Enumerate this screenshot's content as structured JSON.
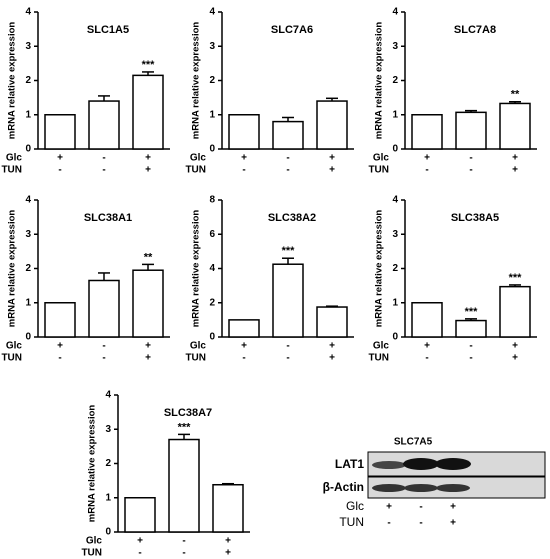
{
  "chart_data": [
    {
      "type": "bar",
      "title": "SLC1A5",
      "ylabel": "mRNA relative expression",
      "values": [
        1,
        1.4,
        2.15
      ],
      "errors": [
        0,
        0.15,
        0.1
      ],
      "annotations": [
        null,
        null,
        "***"
      ],
      "ylim": [
        0,
        4
      ],
      "yticks": [
        0,
        1,
        2,
        3,
        4
      ],
      "color": "#ffffff",
      "conditions": [
        {
          "name": "Glc",
          "marks": [
            "+",
            "-",
            "+"
          ]
        },
        {
          "name": "TUN",
          "marks": [
            "-",
            "-",
            "+"
          ]
        }
      ]
    },
    {
      "type": "bar",
      "title": "SLC7A6",
      "ylabel": "mRNA relative expression",
      "values": [
        1,
        0.8,
        1.4
      ],
      "errors": [
        0,
        0.12,
        0.08
      ],
      "annotations": [
        null,
        null,
        null
      ],
      "ylim": [
        0,
        4
      ],
      "yticks": [
        0,
        1,
        2,
        3,
        4
      ],
      "color": "#ffffff",
      "conditions": [
        {
          "name": "Glc",
          "marks": [
            "+",
            "-",
            "+"
          ]
        },
        {
          "name": "TUN",
          "marks": [
            "-",
            "-",
            "+"
          ]
        }
      ]
    },
    {
      "type": "bar",
      "title": "SLC7A8",
      "ylabel": "mRNA relative expression",
      "values": [
        1,
        1.07,
        1.33
      ],
      "errors": [
        0,
        0.05,
        0.05
      ],
      "annotations": [
        null,
        null,
        "**"
      ],
      "ylim": [
        0,
        4
      ],
      "yticks": [
        0,
        1,
        2,
        3,
        4
      ],
      "color": "#ffffff",
      "conditions": [
        {
          "name": "Glc",
          "marks": [
            "+",
            "-",
            "+"
          ]
        },
        {
          "name": "TUN",
          "marks": [
            "-",
            "-",
            "+"
          ]
        }
      ]
    },
    {
      "type": "bar",
      "title": "SLC38A1",
      "ylabel": "mRNA relative expression",
      "values": [
        1,
        1.65,
        1.95
      ],
      "errors": [
        0,
        0.22,
        0.17
      ],
      "annotations": [
        null,
        null,
        "**"
      ],
      "ylim": [
        0,
        4
      ],
      "yticks": [
        0,
        1,
        2,
        3,
        4
      ],
      "color": "#ffffff",
      "conditions": [
        {
          "name": "Glc",
          "marks": [
            "+",
            "-",
            "+"
          ]
        },
        {
          "name": "TUN",
          "marks": [
            "-",
            "-",
            "+"
          ]
        }
      ]
    },
    {
      "type": "bar",
      "title": "SLC38A2",
      "ylabel": "mRNA relative expression",
      "values": [
        1,
        4.25,
        1.75
      ],
      "errors": [
        0,
        0.35,
        0.05
      ],
      "annotations": [
        null,
        "***",
        null
      ],
      "ylim": [
        0,
        8
      ],
      "yticks": [
        0,
        2,
        4,
        6,
        8
      ],
      "color": "#ffffff",
      "conditions": [
        {
          "name": "Glc",
          "marks": [
            "+",
            "-",
            "+"
          ]
        },
        {
          "name": "TUN",
          "marks": [
            "-",
            "-",
            "+"
          ]
        }
      ]
    },
    {
      "type": "bar",
      "title": "SLC38A5",
      "ylabel": "mRNA relative expression",
      "values": [
        1,
        0.48,
        1.47
      ],
      "errors": [
        0,
        0.05,
        0.05
      ],
      "annotations": [
        null,
        "***",
        "***"
      ],
      "ylim": [
        0,
        4
      ],
      "yticks": [
        0,
        1,
        2,
        3,
        4
      ],
      "color": "#ffffff",
      "conditions": [
        {
          "name": "Glc",
          "marks": [
            "+",
            "-",
            "+"
          ]
        },
        {
          "name": "TUN",
          "marks": [
            "-",
            "-",
            "+"
          ]
        }
      ]
    },
    {
      "type": "bar",
      "title": "SLC38A7",
      "ylabel": "mRNA relative expression",
      "values": [
        1,
        2.7,
        1.38
      ],
      "errors": [
        0,
        0.15,
        0.03
      ],
      "annotations": [
        null,
        "***",
        null
      ],
      "ylim": [
        0,
        4
      ],
      "yticks": [
        0,
        1,
        2,
        3,
        4
      ],
      "color": "#ffffff",
      "conditions": [
        {
          "name": "Glc",
          "marks": [
            "+",
            "-",
            "+"
          ]
        },
        {
          "name": "TUN",
          "marks": [
            "-",
            "-",
            "+"
          ]
        }
      ]
    }
  ],
  "blot": {
    "title": "SLC7A5",
    "rows": [
      "LAT1",
      "β-Actin"
    ],
    "conditions": [
      {
        "name": "Glc",
        "marks": [
          "+",
          "-",
          "+"
        ]
      },
      {
        "name": "TUN",
        "marks": [
          "-",
          "-",
          "+"
        ]
      }
    ]
  }
}
